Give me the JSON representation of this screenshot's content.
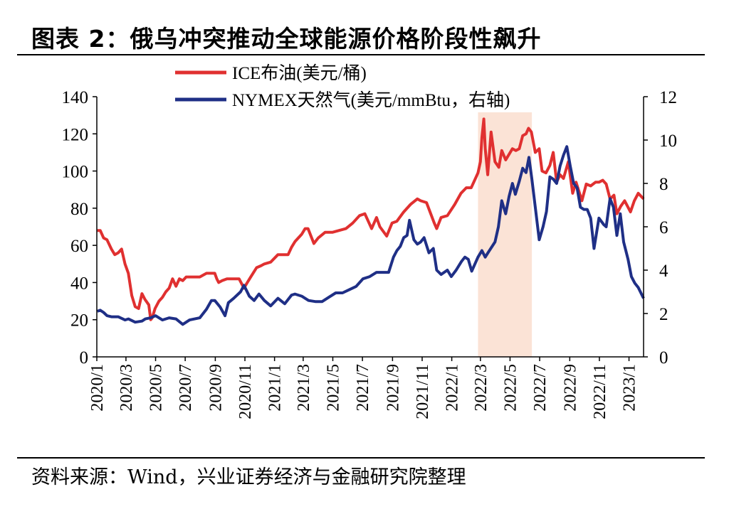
{
  "title": "图表 2：俄乌冲突推动全球能源价格阶段性飙升",
  "source": "资料来源：Wind，兴业证券经济与金融研究院整理",
  "chart_data": {
    "type": "line",
    "legend_position": "top",
    "grid": false,
    "x_range": [
      "2020-01-01",
      "2023-01-31"
    ],
    "x_ticks": [
      "2020/1",
      "2020/3",
      "2020/5",
      "2020/7",
      "2020/9",
      "2020/11",
      "2021/1",
      "2021/3",
      "2021/5",
      "2021/7",
      "2021/9",
      "2021/11",
      "2022/1",
      "2022/3",
      "2022/5",
      "2022/7",
      "2022/9",
      "2022/11",
      "2023/1"
    ],
    "y_left": {
      "range": [
        0,
        140
      ],
      "ticks": [
        "0",
        "20",
        "40",
        "60",
        "80",
        "100",
        "120",
        "140"
      ]
    },
    "y_right": {
      "range": [
        0,
        12
      ],
      "ticks": [
        "0",
        "2",
        "4",
        "6",
        "8",
        "10",
        "12"
      ]
    },
    "highlight_period": {
      "start": "2022-02-24",
      "end": "2022-06-15",
      "color": "#fbe3d6"
    },
    "series": [
      {
        "name": "ICE布油(美元/桶)",
        "axis": "left",
        "color": "#e03030",
        "points": [
          [
            "2020-01-02",
            68
          ],
          [
            "2020-01-08",
            68
          ],
          [
            "2020-01-15",
            64
          ],
          [
            "2020-01-22",
            63
          ],
          [
            "2020-01-31",
            58
          ],
          [
            "2020-02-07",
            55
          ],
          [
            "2020-02-14",
            56
          ],
          [
            "2020-02-21",
            58
          ],
          [
            "2020-02-28",
            50
          ],
          [
            "2020-03-06",
            45
          ],
          [
            "2020-03-13",
            33
          ],
          [
            "2020-03-20",
            27
          ],
          [
            "2020-03-27",
            26
          ],
          [
            "2020-04-03",
            34
          ],
          [
            "2020-04-09",
            31
          ],
          [
            "2020-04-17",
            28
          ],
          [
            "2020-04-21",
            20
          ],
          [
            "2020-04-24",
            21
          ],
          [
            "2020-04-30",
            26
          ],
          [
            "2020-05-08",
            30
          ],
          [
            "2020-05-15",
            32
          ],
          [
            "2020-05-22",
            35
          ],
          [
            "2020-05-29",
            37
          ],
          [
            "2020-06-05",
            42
          ],
          [
            "2020-06-12",
            38
          ],
          [
            "2020-06-19",
            42
          ],
          [
            "2020-06-26",
            41
          ],
          [
            "2020-07-03",
            43
          ],
          [
            "2020-07-15",
            43
          ],
          [
            "2020-07-31",
            43
          ],
          [
            "2020-08-14",
            45
          ],
          [
            "2020-08-31",
            45
          ],
          [
            "2020-09-04",
            42
          ],
          [
            "2020-09-08",
            40
          ],
          [
            "2020-09-15",
            41
          ],
          [
            "2020-09-25",
            42
          ],
          [
            "2020-10-09",
            42
          ],
          [
            "2020-10-20",
            42
          ],
          [
            "2020-10-30",
            37
          ],
          [
            "2020-11-06",
            40
          ],
          [
            "2020-11-13",
            43
          ],
          [
            "2020-11-25",
            48
          ],
          [
            "2020-12-04",
            49
          ],
          [
            "2020-12-11",
            50
          ],
          [
            "2020-12-24",
            51
          ],
          [
            "2021-01-08",
            55
          ],
          [
            "2021-01-15",
            55
          ],
          [
            "2021-01-29",
            55
          ],
          [
            "2021-02-05",
            59
          ],
          [
            "2021-02-12",
            62
          ],
          [
            "2021-02-26",
            66
          ],
          [
            "2021-03-05",
            69
          ],
          [
            "2021-03-11",
            69
          ],
          [
            "2021-03-23",
            61
          ],
          [
            "2021-04-01",
            64
          ],
          [
            "2021-04-15",
            67
          ],
          [
            "2021-04-30",
            67
          ],
          [
            "2021-05-14",
            68
          ],
          [
            "2021-05-28",
            69
          ],
          [
            "2021-06-11",
            72
          ],
          [
            "2021-06-25",
            76
          ],
          [
            "2021-07-06",
            77
          ],
          [
            "2021-07-20",
            69
          ],
          [
            "2021-07-30",
            75
          ],
          [
            "2021-08-06",
            70
          ],
          [
            "2021-08-20",
            65
          ],
          [
            "2021-08-31",
            72
          ],
          [
            "2021-09-10",
            73
          ],
          [
            "2021-09-24",
            78
          ],
          [
            "2021-10-08",
            82
          ],
          [
            "2021-10-22",
            85
          ],
          [
            "2021-10-29",
            84
          ],
          [
            "2021-11-10",
            83
          ],
          [
            "2021-11-26",
            72
          ],
          [
            "2021-12-01",
            69
          ],
          [
            "2021-12-10",
            75
          ],
          [
            "2021-12-23",
            76
          ],
          [
            "2022-01-07",
            82
          ],
          [
            "2022-01-20",
            88
          ],
          [
            "2022-01-31",
            91
          ],
          [
            "2022-02-10",
            91
          ],
          [
            "2022-02-24",
            99
          ],
          [
            "2022-03-01",
            105
          ],
          [
            "2022-03-04",
            118
          ],
          [
            "2022-03-08",
            128
          ],
          [
            "2022-03-11",
            112
          ],
          [
            "2022-03-16",
            98
          ],
          [
            "2022-03-23",
            121
          ],
          [
            "2022-03-31",
            105
          ],
          [
            "2022-04-08",
            102
          ],
          [
            "2022-04-14",
            111
          ],
          [
            "2022-04-22",
            106
          ],
          [
            "2022-04-29",
            109
          ],
          [
            "2022-05-06",
            112
          ],
          [
            "2022-05-13",
            111
          ],
          [
            "2022-05-20",
            112
          ],
          [
            "2022-05-27",
            119
          ],
          [
            "2022-06-03",
            120
          ],
          [
            "2022-06-08",
            123
          ],
          [
            "2022-06-14",
            121
          ],
          [
            "2022-06-22",
            110
          ],
          [
            "2022-06-30",
            112
          ],
          [
            "2022-07-06",
            100
          ],
          [
            "2022-07-14",
            99
          ],
          [
            "2022-07-22",
            103
          ],
          [
            "2022-07-29",
            110
          ],
          [
            "2022-08-05",
            94
          ],
          [
            "2022-08-12",
            98
          ],
          [
            "2022-08-19",
            96
          ],
          [
            "2022-08-29",
            105
          ],
          [
            "2022-09-07",
            88
          ],
          [
            "2022-09-14",
            94
          ],
          [
            "2022-09-26",
            84
          ],
          [
            "2022-10-05",
            93
          ],
          [
            "2022-10-14",
            92
          ],
          [
            "2022-10-24",
            94
          ],
          [
            "2022-10-31",
            94
          ],
          [
            "2022-11-08",
            95
          ],
          [
            "2022-11-15",
            93
          ],
          [
            "2022-11-23",
            85
          ],
          [
            "2022-12-01",
            87
          ],
          [
            "2022-12-07",
            77
          ],
          [
            "2022-12-15",
            81
          ],
          [
            "2022-12-23",
            84
          ],
          [
            "2023-01-04",
            78
          ],
          [
            "2023-01-12",
            84
          ],
          [
            "2023-01-20",
            88
          ],
          [
            "2023-01-31",
            85
          ]
        ]
      },
      {
        "name": "NYMEX天然气(美元/mmBtu，右轴)",
        "axis": "right",
        "color": "#1f2f86",
        "points": [
          [
            "2020-01-02",
            2.1
          ],
          [
            "2020-01-08",
            2.15
          ],
          [
            "2020-01-15",
            2.05
          ],
          [
            "2020-01-22",
            1.9
          ],
          [
            "2020-01-31",
            1.85
          ],
          [
            "2020-02-14",
            1.85
          ],
          [
            "2020-02-28",
            1.7
          ],
          [
            "2020-03-06",
            1.75
          ],
          [
            "2020-03-20",
            1.6
          ],
          [
            "2020-04-03",
            1.65
          ],
          [
            "2020-04-10",
            1.75
          ],
          [
            "2020-04-21",
            1.8
          ],
          [
            "2020-05-01",
            1.9
          ],
          [
            "2020-05-15",
            1.7
          ],
          [
            "2020-05-29",
            1.8
          ],
          [
            "2020-06-12",
            1.75
          ],
          [
            "2020-06-26",
            1.5
          ],
          [
            "2020-07-10",
            1.7
          ],
          [
            "2020-07-31",
            1.8
          ],
          [
            "2020-08-14",
            2.2
          ],
          [
            "2020-08-24",
            2.6
          ],
          [
            "2020-08-31",
            2.6
          ],
          [
            "2020-09-11",
            2.3
          ],
          [
            "2020-09-21",
            1.9
          ],
          [
            "2020-09-28",
            2.5
          ],
          [
            "2020-10-09",
            2.7
          ],
          [
            "2020-10-23",
            3.0
          ],
          [
            "2020-10-30",
            3.3
          ],
          [
            "2020-11-10",
            2.8
          ],
          [
            "2020-11-20",
            2.6
          ],
          [
            "2020-11-30",
            2.9
          ],
          [
            "2020-12-11",
            2.6
          ],
          [
            "2020-12-24",
            2.35
          ],
          [
            "2021-01-08",
            2.7
          ],
          [
            "2021-01-22",
            2.45
          ],
          [
            "2021-02-05",
            2.85
          ],
          [
            "2021-02-12",
            2.9
          ],
          [
            "2021-02-26",
            2.8
          ],
          [
            "2021-03-12",
            2.6
          ],
          [
            "2021-03-26",
            2.55
          ],
          [
            "2021-04-09",
            2.55
          ],
          [
            "2021-04-23",
            2.75
          ],
          [
            "2021-05-07",
            2.95
          ],
          [
            "2021-05-21",
            2.95
          ],
          [
            "2021-06-04",
            3.1
          ],
          [
            "2021-06-18",
            3.25
          ],
          [
            "2021-07-02",
            3.6
          ],
          [
            "2021-07-16",
            3.7
          ],
          [
            "2021-07-30",
            3.9
          ],
          [
            "2021-08-13",
            3.9
          ],
          [
            "2021-08-24",
            3.9
          ],
          [
            "2021-09-03",
            4.6
          ],
          [
            "2021-09-10",
            4.9
          ],
          [
            "2021-09-17",
            5.1
          ],
          [
            "2021-09-24",
            5.5
          ],
          [
            "2021-10-01",
            5.6
          ],
          [
            "2021-10-06",
            6.3
          ],
          [
            "2021-10-15",
            5.4
          ],
          [
            "2021-10-22",
            5.2
          ],
          [
            "2021-10-29",
            5.3
          ],
          [
            "2021-11-05",
            5.5
          ],
          [
            "2021-11-15",
            4.8
          ],
          [
            "2021-11-24",
            5.0
          ],
          [
            "2021-12-01",
            4.0
          ],
          [
            "2021-12-10",
            3.8
          ],
          [
            "2021-12-23",
            4.0
          ],
          [
            "2021-12-31",
            3.7
          ],
          [
            "2022-01-10",
            4.0
          ],
          [
            "2022-01-21",
            4.4
          ],
          [
            "2022-01-28",
            4.6
          ],
          [
            "2022-02-04",
            4.5
          ],
          [
            "2022-02-11",
            3.95
          ],
          [
            "2022-02-24",
            4.6
          ],
          [
            "2022-03-04",
            4.9
          ],
          [
            "2022-03-11",
            4.6
          ],
          [
            "2022-03-18",
            4.85
          ],
          [
            "2022-03-31",
            5.3
          ],
          [
            "2022-04-07",
            6.0
          ],
          [
            "2022-04-14",
            7.2
          ],
          [
            "2022-04-22",
            6.6
          ],
          [
            "2022-04-29",
            7.4
          ],
          [
            "2022-05-06",
            8.0
          ],
          [
            "2022-05-12",
            7.5
          ],
          [
            "2022-05-20",
            8.1
          ],
          [
            "2022-05-27",
            8.7
          ],
          [
            "2022-06-03",
            8.5
          ],
          [
            "2022-06-09",
            9.2
          ],
          [
            "2022-06-15",
            8.2
          ],
          [
            "2022-06-22",
            6.9
          ],
          [
            "2022-06-30",
            5.4
          ],
          [
            "2022-07-08",
            6.0
          ],
          [
            "2022-07-15",
            6.7
          ],
          [
            "2022-07-22",
            8.3
          ],
          [
            "2022-07-29",
            8.2
          ],
          [
            "2022-08-05",
            8.0
          ],
          [
            "2022-08-12",
            8.8
          ],
          [
            "2022-08-19",
            9.3
          ],
          [
            "2022-08-26",
            9.7
          ],
          [
            "2022-09-02",
            8.8
          ],
          [
            "2022-09-09",
            8.0
          ],
          [
            "2022-09-16",
            7.8
          ],
          [
            "2022-09-23",
            6.9
          ],
          [
            "2022-09-30",
            6.8
          ],
          [
            "2022-10-07",
            6.8
          ],
          [
            "2022-10-14",
            6.4
          ],
          [
            "2022-10-21",
            5.0
          ],
          [
            "2022-10-31",
            6.4
          ],
          [
            "2022-11-10",
            6.1
          ],
          [
            "2022-11-15",
            6.0
          ],
          [
            "2022-11-23",
            7.3
          ],
          [
            "2022-11-30",
            6.9
          ],
          [
            "2022-12-07",
            5.6
          ],
          [
            "2022-12-14",
            6.6
          ],
          [
            "2022-12-21",
            5.3
          ],
          [
            "2022-12-30",
            4.5
          ],
          [
            "2023-01-06",
            3.7
          ],
          [
            "2023-01-13",
            3.4
          ],
          [
            "2023-01-20",
            3.2
          ],
          [
            "2023-01-31",
            2.7
          ]
        ]
      }
    ]
  }
}
